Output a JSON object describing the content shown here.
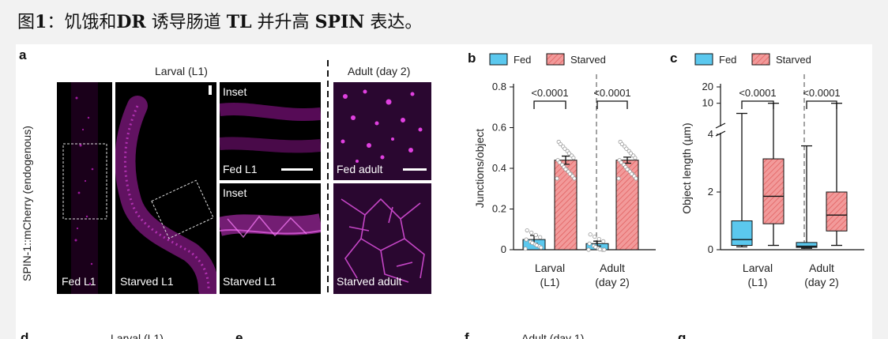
{
  "caption": {
    "prefix": "图",
    "num": "1",
    "sep": "：饥饿和",
    "t1": "DR",
    "mid1": " 诱导肠道 ",
    "t2": "TL",
    "mid2": " 并升高 ",
    "t3": "SPIN",
    "end": " 表达。"
  },
  "panel_a": {
    "label": "a",
    "y_label": "SPIN-1::mCherry (endogenous)",
    "larval_header": "Larval (L1)",
    "adult_header": "Adult (day 2)",
    "images": [
      {
        "label": "Fed L1"
      },
      {
        "label": "Starved L1"
      },
      {
        "label": "Inset",
        "label2": "Fed L1"
      },
      {
        "label": "Inset",
        "label2": "Starved L1"
      },
      {
        "label": "Fed adult"
      },
      {
        "label": "Starved adult"
      }
    ]
  },
  "legend": {
    "fed": "Fed",
    "starved": "Starved",
    "fed_color": "#5bc8ee",
    "starved_color": "#f29a9a"
  },
  "chart_data": [
    {
      "panel": "b",
      "type": "bar",
      "ylabel": "Junctions/object",
      "ylim": [
        0,
        0.8
      ],
      "yticks": [
        0,
        0.2,
        0.4,
        0.6,
        0.8
      ],
      "categories": [
        [
          "Larval",
          "(L1)"
        ],
        [
          "Adult",
          "(day 2)"
        ]
      ],
      "series": [
        {
          "name": "Fed",
          "values": [
            0.05,
            0.03
          ],
          "sem": [
            0.02,
            0.012
          ]
        },
        {
          "name": "Starved",
          "values": [
            0.44,
            0.44
          ],
          "sem": [
            0.02,
            0.015
          ]
        }
      ],
      "annotations": [
        "<0.0001",
        "<0.0001"
      ]
    },
    {
      "panel": "c",
      "type": "box",
      "ylabel": "Object length (µm)",
      "yticks_lower": [
        0,
        2,
        4
      ],
      "yticks_upper": [
        10,
        20
      ],
      "categories": [
        [
          "Larval",
          "(L1)"
        ],
        [
          "Adult",
          "(day 2)"
        ]
      ],
      "series": [
        {
          "name": "Fed",
          "boxes": [
            {
              "min": 0.1,
              "q1": 0.15,
              "median": 0.35,
              "q3": 1.0,
              "max": 6.5
            },
            {
              "min": 0.05,
              "q1": 0.08,
              "median": 0.12,
              "q3": 0.25,
              "max": 3.6
            }
          ]
        },
        {
          "name": "Starved",
          "boxes": [
            {
              "min": 0.15,
              "q1": 0.9,
              "median": 1.85,
              "q3": 3.15,
              "max": 10
            },
            {
              "min": 0.15,
              "q1": 0.65,
              "median": 1.2,
              "q3": 2.0,
              "max": 10
            }
          ]
        }
      ],
      "annotations": [
        "<0.0001",
        "<0.0001"
      ]
    }
  ],
  "next_row": {
    "d": "d",
    "d_title": "Larval (L1)",
    "e": "e",
    "f": "f",
    "f_title": "Adult (day 1)",
    "g": "g"
  }
}
